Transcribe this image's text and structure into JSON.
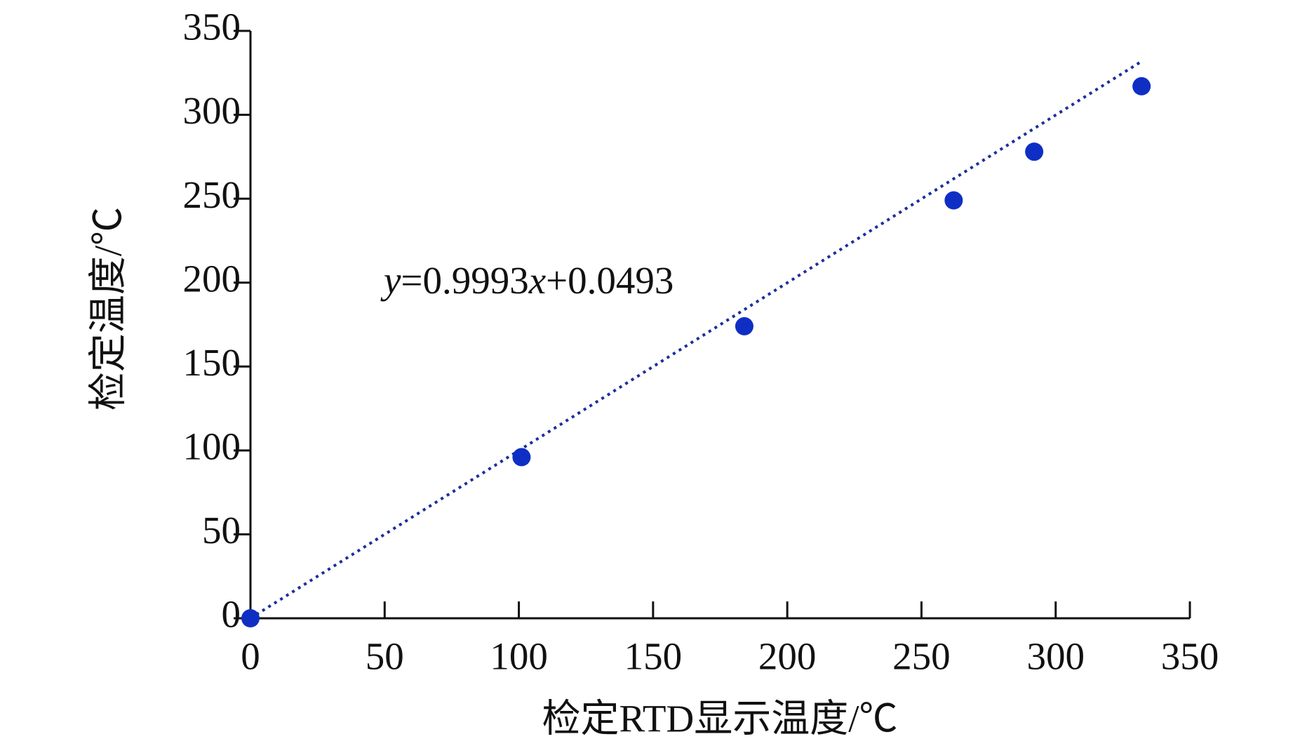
{
  "chart_data": {
    "type": "scatter",
    "x_label": "检定RTD显示温度/℃",
    "y_label": "检定温度/℃",
    "annotation_parts": [
      "y",
      "=0.9993",
      "x",
      "+0.0493"
    ],
    "trendline": {
      "slope": 0.9993,
      "intercept": 0.0493,
      "color": "#1a2f9a"
    },
    "series": [
      {
        "name": "检定温度",
        "color": "#0f2fc4",
        "x": [
          0,
          101,
          184,
          262,
          292,
          332
        ],
        "values": [
          0,
          96,
          174,
          249,
          278,
          317
        ]
      }
    ],
    "xlim": [
      0,
      350
    ],
    "xticks": [
      0,
      50,
      100,
      150,
      200,
      250,
      300,
      350
    ],
    "ylim": [
      0,
      350
    ],
    "yticks": [
      0,
      50,
      100,
      150,
      200,
      250,
      300,
      350
    ],
    "grid": false
  }
}
